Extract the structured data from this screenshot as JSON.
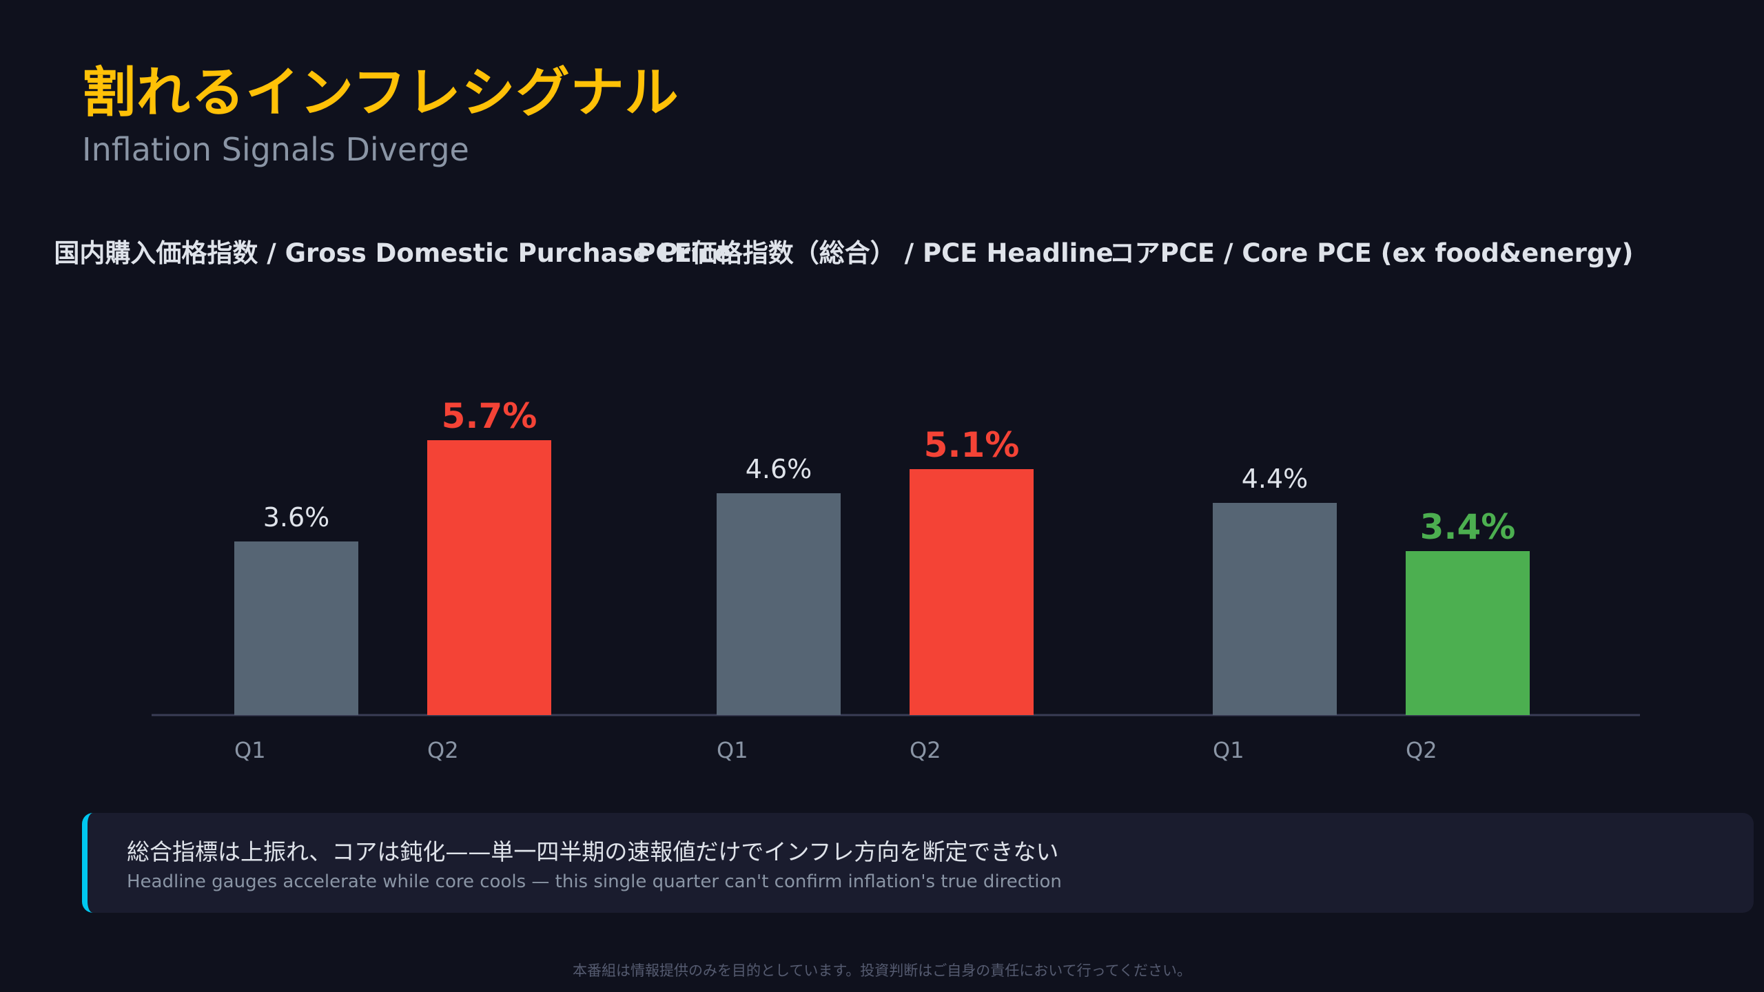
{
  "header": {
    "title_jp": "割れるインフレシグナル",
    "title_en": "Inflation Signals Diverge"
  },
  "colors": {
    "q1_bar": "#566574",
    "up_bar": "#f44336",
    "down_bar": "#4caf50",
    "title_accent": "#ffc107",
    "callout_accent": "#00c8f0"
  },
  "chart_data": [
    {
      "type": "bar",
      "title": "国内購入価格指数 / Gross Domestic Purchase Price",
      "categories": [
        "Q1",
        "Q2"
      ],
      "values": [
        3.6,
        5.7
      ],
      "labels": [
        "3.6%",
        "5.7%"
      ],
      "emphasis": [
        "none",
        "up"
      ]
    },
    {
      "type": "bar",
      "title": "PCE価格指数（総合） / PCE Headline",
      "categories": [
        "Q1",
        "Q2"
      ],
      "values": [
        4.6,
        5.1
      ],
      "labels": [
        "4.6%",
        "5.1%"
      ],
      "emphasis": [
        "none",
        "up"
      ]
    },
    {
      "type": "bar",
      "title": "コアPCE / Core PCE (ex food&energy)",
      "categories": [
        "Q1",
        "Q2"
      ],
      "values": [
        4.4,
        3.4
      ],
      "labels": [
        "4.4%",
        "3.4%"
      ],
      "emphasis": [
        "none",
        "down"
      ]
    }
  ],
  "callout": {
    "text_jp": "総合指標は上振れ、コアは鈍化——単一四半期の速報値だけでインフレ方向を断定できない",
    "text_en": "Headline gauges accelerate while core cools — this single quarter can't confirm inflation's true direction"
  },
  "footer": {
    "disclaimer": "本番組は情報提供のみを目的としています。投資判断はご自身の責任において行ってください。"
  }
}
